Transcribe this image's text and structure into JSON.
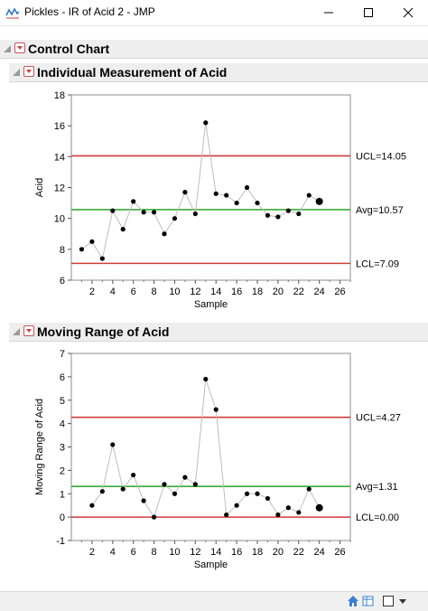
{
  "window": {
    "title": "Pickles - IR of Acid 2 - JMP"
  },
  "report": {
    "title": "Control Chart",
    "ir_title": "Individual Measurement of Acid",
    "mr_title": "Moving Range of Acid"
  },
  "colors": {
    "ucl_lcl": "#d33c3c",
    "avg": "#3aaa35",
    "line": "#bdbdbd",
    "point": "#000000"
  },
  "chart_data": [
    {
      "type": "line",
      "xlabel": "Sample",
      "ylabel": "Acid",
      "xlim": [
        0,
        27
      ],
      "ylim": [
        6,
        18
      ],
      "x_ticks": [
        2,
        4,
        6,
        8,
        10,
        12,
        14,
        16,
        18,
        20,
        22,
        24,
        26
      ],
      "y_ticks": [
        6,
        8,
        10,
        12,
        14,
        16,
        18
      ],
      "x": [
        1,
        2,
        3,
        4,
        5,
        6,
        7,
        8,
        9,
        10,
        11,
        12,
        13,
        14,
        15,
        16,
        17,
        18,
        19,
        20,
        21,
        22,
        23,
        24
      ],
      "values": [
        8.0,
        8.5,
        7.4,
        10.5,
        9.3,
        11.1,
        10.4,
        10.4,
        9.0,
        10.0,
        11.7,
        10.3,
        16.2,
        11.6,
        11.5,
        11.0,
        12.0,
        11.0,
        10.2,
        10.1,
        10.5,
        10.3,
        11.5,
        11.1
      ],
      "limits": [
        {
          "label": "UCL=14.05",
          "value": 14.05,
          "kind": "ucl"
        },
        {
          "label": "Avg=10.57",
          "value": 10.57,
          "kind": "avg"
        },
        {
          "label": "LCL=7.09",
          "value": 7.09,
          "kind": "lcl"
        }
      ]
    },
    {
      "type": "line",
      "xlabel": "Sample",
      "ylabel": "Moving Range of Acid",
      "xlim": [
        0,
        27
      ],
      "ylim": [
        -1,
        7
      ],
      "x_ticks": [
        2,
        4,
        6,
        8,
        10,
        12,
        14,
        16,
        18,
        20,
        22,
        24,
        26
      ],
      "y_ticks": [
        -1,
        0,
        1,
        2,
        3,
        4,
        5,
        6,
        7
      ],
      "x": [
        2,
        3,
        4,
        5,
        6,
        7,
        8,
        9,
        10,
        11,
        12,
        13,
        14,
        15,
        16,
        17,
        18,
        19,
        20,
        21,
        22,
        23,
        24
      ],
      "values": [
        0.5,
        1.1,
        3.1,
        1.2,
        1.8,
        0.7,
        0.0,
        1.4,
        1.0,
        1.7,
        1.4,
        5.9,
        4.6,
        0.1,
        0.5,
        1.0,
        1.0,
        0.8,
        0.1,
        0.4,
        0.2,
        1.2,
        0.4
      ],
      "limits": [
        {
          "label": "UCL=4.27",
          "value": 4.27,
          "kind": "ucl"
        },
        {
          "label": "Avg=1.31",
          "value": 1.31,
          "kind": "avg"
        },
        {
          "label": "LCL=0.00",
          "value": 0.0,
          "kind": "lcl"
        }
      ]
    }
  ]
}
